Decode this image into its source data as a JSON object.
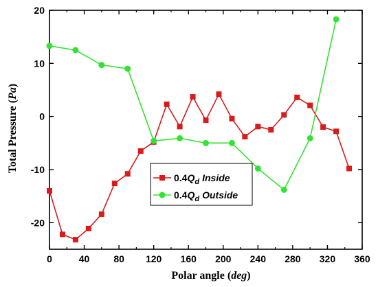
{
  "chart_data": {
    "type": "line",
    "xlabel": "Polar angle",
    "xlabel_unit": "deg",
    "ylabel": "Total Pressure",
    "ylabel_unit": "Pa",
    "xlim": [
      0,
      360
    ],
    "ylim": [
      -25,
      20
    ],
    "xticks": [
      0,
      40,
      80,
      120,
      160,
      200,
      240,
      280,
      320,
      360
    ],
    "yticks": [
      -20,
      -10,
      0,
      10,
      20
    ],
    "grid": false,
    "legend_position": "lower-center",
    "series": [
      {
        "name_prefix": "0.4",
        "name_symbol": "Q",
        "name_sub": "d",
        "name_suffix": "Inside",
        "color": "#d81b1b",
        "marker": "square",
        "x": [
          0,
          15,
          30,
          45,
          60,
          75,
          90,
          105,
          120,
          135,
          150,
          165,
          180,
          195,
          210,
          225,
          240,
          255,
          270,
          285,
          300,
          315,
          330,
          345
        ],
        "y": [
          -14.0,
          -22.2,
          -23.2,
          -21.1,
          -18.4,
          -12.6,
          -10.8,
          -6.5,
          -4.8,
          2.3,
          -1.9,
          3.7,
          -0.7,
          4.2,
          -0.4,
          -3.8,
          -1.9,
          -2.5,
          0.3,
          3.6,
          2.1,
          -2.0,
          -2.8,
          -9.8
        ]
      },
      {
        "name_prefix": "0.4",
        "name_symbol": "Q",
        "name_sub": "d",
        "name_suffix": "Outside",
        "color": "#33e233",
        "marker": "circle",
        "x": [
          0,
          30,
          60,
          90,
          120,
          150,
          180,
          210,
          240,
          270,
          300,
          330
        ],
        "y": [
          13.3,
          12.5,
          9.7,
          9.0,
          -4.6,
          -4.1,
          -5.0,
          -5.0,
          -9.8,
          -13.8,
          -4.1,
          18.3
        ]
      }
    ]
  }
}
